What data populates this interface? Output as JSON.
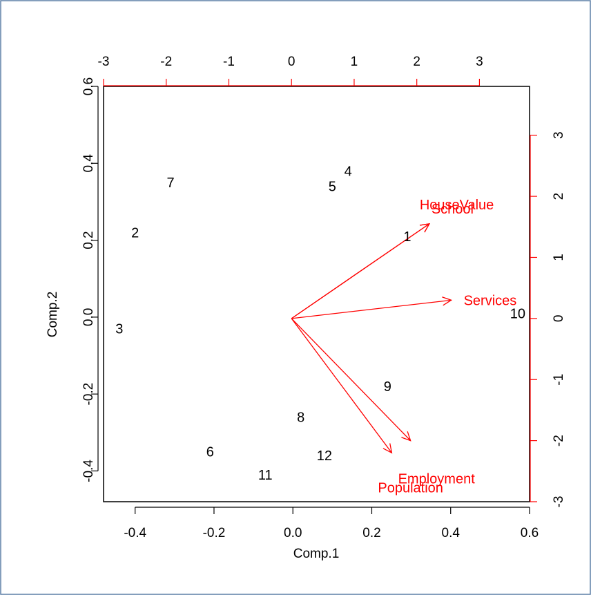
{
  "chart_data": {
    "type": "biplot",
    "title": "",
    "xlabel": "Comp.1",
    "ylabel": "Comp.2",
    "xlim": [
      -0.48,
      0.6
    ],
    "ylim": [
      -0.48,
      0.6
    ],
    "x_ticks": [
      -0.4,
      -0.2,
      0.0,
      0.2,
      0.4,
      0.6
    ],
    "x_tick_labels": [
      "-0.4",
      "-0.2",
      "0.0",
      "0.2",
      "0.4",
      "0.6"
    ],
    "y_ticks": [
      -0.4,
      -0.2,
      0.0,
      0.2,
      0.4,
      0.6
    ],
    "y_tick_labels": [
      "-0.4",
      "-0.2",
      "0.0",
      "0.2",
      "0.4",
      "0.6"
    ],
    "top_axis": {
      "lim": [
        -3,
        3.8
      ],
      "ticks": [
        -3,
        -2,
        -1,
        0,
        1,
        2,
        3
      ],
      "labels": [
        "-3",
        "-2",
        "-1",
        "0",
        "1",
        "2",
        "3"
      ]
    },
    "right_axis": {
      "lim": [
        -3,
        3.8
      ],
      "ticks": [
        -3,
        -2,
        -1,
        0,
        1,
        2,
        3
      ],
      "labels": [
        "-3",
        "-2",
        "-1",
        "0",
        "1",
        "2",
        "3"
      ]
    },
    "points": [
      {
        "label": "1",
        "x": 0.29,
        "y": 0.21
      },
      {
        "label": "2",
        "x": -0.4,
        "y": 0.22
      },
      {
        "label": "3",
        "x": -0.44,
        "y": -0.03
      },
      {
        "label": "4",
        "x": 0.14,
        "y": 0.38
      },
      {
        "label": "5",
        "x": 0.1,
        "y": 0.34
      },
      {
        "label": "6",
        "x": -0.21,
        "y": -0.35
      },
      {
        "label": "7",
        "x": -0.31,
        "y": 0.35
      },
      {
        "label": "8",
        "x": 0.02,
        "y": -0.26
      },
      {
        "label": "9",
        "x": 0.24,
        "y": -0.18
      },
      {
        "label": "10",
        "x": 0.57,
        "y": 0.01
      },
      {
        "label": "11",
        "x": -0.07,
        "y": -0.41
      },
      {
        "label": "12",
        "x": 0.08,
        "y": -0.36
      }
    ],
    "loadings": [
      {
        "name": "HouseValue",
        "x": 2.2,
        "y": 1.55
      },
      {
        "name": "School",
        "x": 2.2,
        "y": 1.55
      },
      {
        "name": "Services",
        "x": 2.55,
        "y": 0.3
      },
      {
        "name": "Employment",
        "x": 1.9,
        "y": -2.0
      },
      {
        "name": "Population",
        "x": 1.6,
        "y": -2.2
      }
    ],
    "colors": {
      "points": "#000000",
      "loadings": "#ff0000",
      "frame": "#5b7fa6"
    }
  }
}
